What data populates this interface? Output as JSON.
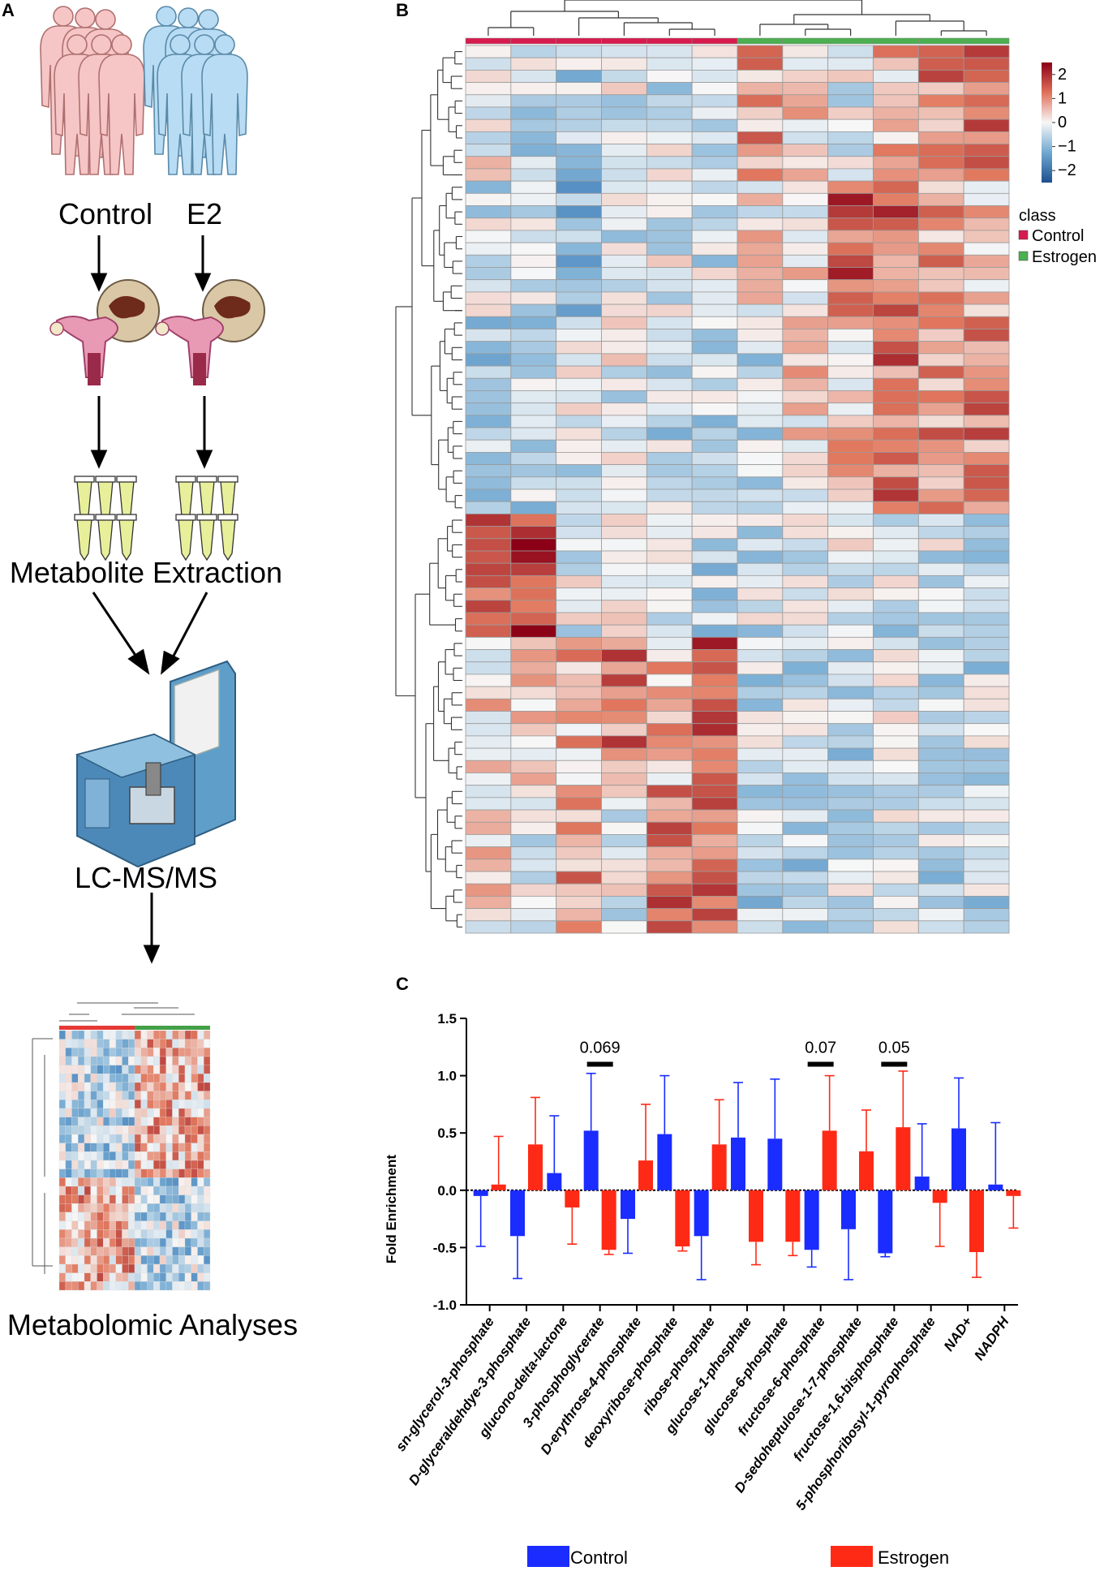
{
  "panels": {
    "a": "A",
    "b": "B",
    "c": "C"
  },
  "workflow": {
    "groups": [
      "Control",
      "E2"
    ],
    "extraction_label": "Metabolite Extraction",
    "instrument_label": "LC-MS/MS",
    "analysis_label": "Metabolomic Analyses",
    "colors": {
      "control_body": "#f6c6c6",
      "e2_body": "#b8dcf4",
      "tube": "#e8ef9a"
    }
  },
  "heatmap": {
    "rows": 72,
    "columns": 12,
    "column_classes": [
      "Control",
      "Control",
      "Control",
      "Control",
      "Control",
      "Control",
      "Estrogen",
      "Estrogen",
      "Estrogen",
      "Estrogen",
      "Estrogen",
      "Estrogen"
    ],
    "class_legend_title": "class",
    "class_legend": [
      {
        "label": "Control",
        "color": "#d81b4e"
      },
      {
        "label": "Estrogen",
        "color": "#4caf50"
      }
    ],
    "colorbar_ticks": [
      "2",
      "1",
      "0",
      "−1",
      "−2"
    ],
    "colorbar_range": [
      -2.5,
      2.5
    ],
    "colors": {
      "low": "#2166ac",
      "mid": "#f7f7f7",
      "high": "#8b0016"
    }
  },
  "chart_data": {
    "type": "bar",
    "title": "",
    "xlabel": "",
    "ylabel": "Fold Enrichment",
    "ylim": [
      -1.0,
      1.5
    ],
    "yticks": [
      "1.5",
      "1.0",
      "0.5",
      "0.0",
      "-0.5",
      "-1.0"
    ],
    "categories": [
      "sn-glycerol-3-phosphate",
      "D-glyceraldehdye-3-phosphate",
      "glucono-delta-lactone",
      "3-phosphoglycerate",
      "D-erythrose-4-phosphate",
      "deoxyribose-phosphate",
      "ribose-phosphate",
      "glucose-1-phosphate",
      "glucose-6-phosphate",
      "fructose-6-phosphate",
      "D-sedoheptulose-1-7-phosphate",
      "fructose-1,6-bisphosphate",
      "5-phosphoribosyl-1-pyrophosphate",
      "NAD+",
      "NADPH"
    ],
    "series": [
      {
        "name": "Control",
        "color": "#1a2cff",
        "values": [
          -0.05,
          -0.4,
          0.15,
          0.52,
          -0.25,
          0.49,
          -0.4,
          0.46,
          0.45,
          -0.52,
          -0.34,
          -0.55,
          0.12,
          0.54,
          0.05
        ],
        "errors": [
          0.44,
          0.37,
          0.5,
          0.5,
          0.3,
          0.51,
          0.38,
          0.48,
          0.52,
          0.15,
          0.44,
          0.03,
          0.46,
          0.44,
          0.54
        ]
      },
      {
        "name": "Estrogen",
        "color": "#ff2a16",
        "values": [
          0.05,
          0.4,
          -0.15,
          -0.52,
          0.26,
          -0.49,
          0.4,
          -0.45,
          -0.45,
          0.52,
          0.34,
          0.55,
          -0.11,
          -0.54,
          -0.05
        ],
        "errors": [
          0.42,
          0.41,
          0.32,
          0.04,
          0.49,
          0.04,
          0.39,
          0.2,
          0.12,
          0.48,
          0.36,
          0.49,
          0.38,
          0.22,
          0.28
        ]
      }
    ],
    "annotations": [
      {
        "category": "3-phosphoglycerate",
        "label": "0.069",
        "y": 1.1
      },
      {
        "category": "fructose-6-phosphate",
        "label": "0.07",
        "y": 1.1
      },
      {
        "category": "fructose-1,6-bisphosphate",
        "label": "0.05",
        "y": 1.1
      }
    ],
    "legend": [
      "Control",
      "Estrogen"
    ],
    "legend_position": "bottom"
  }
}
